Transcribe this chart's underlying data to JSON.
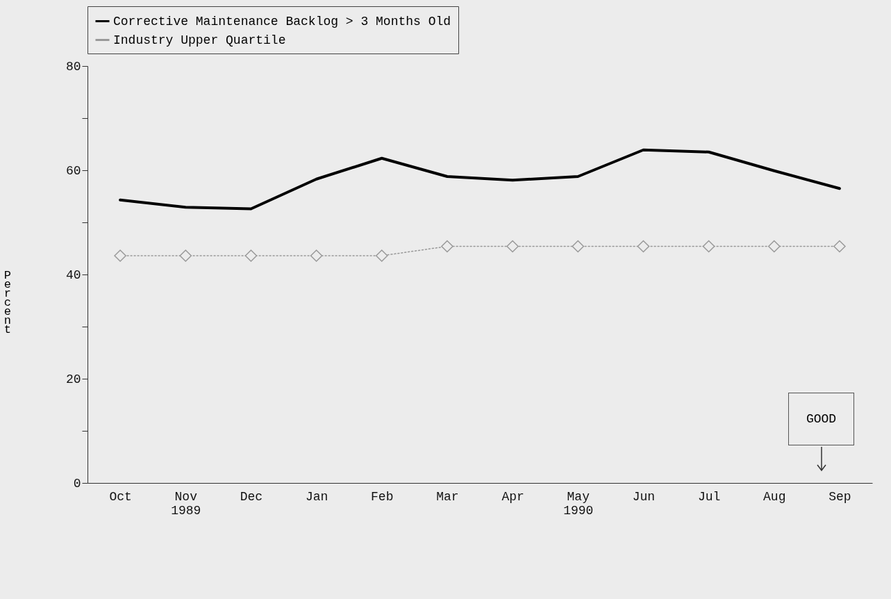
{
  "chart_data": {
    "type": "line",
    "ylabel": "Percent",
    "categories": [
      "Oct",
      "Nov\n1989",
      "Dec",
      "Jan",
      "Feb",
      "Mar",
      "Apr",
      "May\n1990",
      "Jun",
      "Jul",
      "Aug",
      "Sep"
    ],
    "series": [
      {
        "name": "Corrective Maintenance Backlog > 3 Months Old",
        "color": "#000000",
        "line_style": "solid",
        "marker": "none",
        "values": [
          54.3,
          52.9,
          52.6,
          58.3,
          62.3,
          58.8,
          58.1,
          58.8,
          63.9,
          63.5,
          59.9,
          56.5
        ]
      },
      {
        "name": "Industry Upper Quartile",
        "color": "#999999",
        "line_style": "dotted",
        "marker": "diamond",
        "values": [
          43.6,
          43.6,
          43.6,
          43.6,
          43.6,
          45.4,
          45.4,
          45.4,
          45.4,
          45.4,
          45.4,
          45.4
        ]
      }
    ],
    "ylim": [
      0,
      80
    ],
    "yticks": [
      0,
      {
        "value": 10,
        "label": null
      },
      20,
      {
        "value": 30,
        "label": null
      },
      40,
      {
        "value": 50,
        "label": null
      },
      60,
      {
        "value": 70,
        "label": null
      },
      80
    ],
    "grid": false,
    "legend": "top",
    "annotations": [
      "GOOD"
    ]
  }
}
